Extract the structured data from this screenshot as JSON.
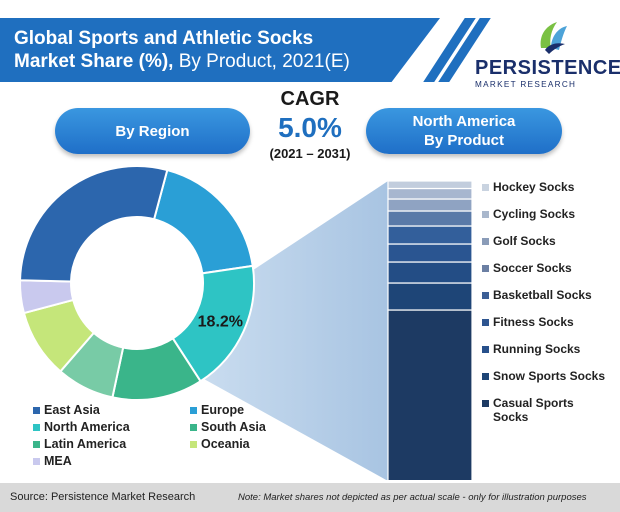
{
  "title": {
    "bold": "Global Sports and Athletic Socks",
    "bold2": "Market Share (%),",
    "regular": " By Product, 2021(E)"
  },
  "logo": {
    "name": "PERSISTENCE",
    "tagline": "MARKET RESEARCH",
    "icon": "persistence-leaf-logo"
  },
  "pill_left": "By Region",
  "pill_right_line1": "North America",
  "pill_right_line2": "By Product",
  "cagr": {
    "label": "CAGR",
    "value": "5.0%",
    "period": "(2021 – 2031)"
  },
  "chart_data": [
    {
      "type": "pie",
      "variant": "donut",
      "title": "By Region",
      "highlight_label": "18.2%",
      "slices": [
        {
          "name": "Europe",
          "value": 18.5,
          "color": "#2a9fd6"
        },
        {
          "name": "North America",
          "value": 18.2,
          "color": "#2ec4c4"
        },
        {
          "name": "South Asia",
          "value": 12.5,
          "color": "#3ab58a"
        },
        {
          "name": "Oceania",
          "value": 8.0,
          "color": "#78cba6"
        },
        {
          "name": "Latin America",
          "value": 9.5,
          "color": "#c5e67a"
        },
        {
          "name": "MEA",
          "value": 4.5,
          "color": "#c9c9ee"
        },
        {
          "name": "East Asia",
          "value": 28.8,
          "color": "#2c66ad"
        }
      ],
      "legend": [
        {
          "name": "East Asia",
          "color": "#2c66ad"
        },
        {
          "name": "Europe",
          "color": "#2a9fd6"
        },
        {
          "name": "North America",
          "color": "#2ec4c4"
        },
        {
          "name": "South Asia",
          "color": "#3ab58a"
        },
        {
          "name": "Latin America",
          "color": "#3ab58a"
        },
        {
          "name": "Oceania",
          "color": "#c5e67a"
        },
        {
          "name": "MEA",
          "color": "#c9c9ee"
        }
      ]
    },
    {
      "type": "bar",
      "variant": "stacked-100",
      "title": "North America By Product",
      "categories": [
        "North America"
      ],
      "series": [
        {
          "name": "Casual Sports Socks",
          "value": 57.0,
          "color": "#1d3a63"
        },
        {
          "name": "Snow Sports Socks",
          "value": 9.0,
          "color": "#1e4577"
        },
        {
          "name": "Running Socks",
          "value": 7.0,
          "color": "#234d85"
        },
        {
          "name": "Fitness Socks",
          "value": 6.0,
          "color": "#2a5591"
        },
        {
          "name": "Basketball Socks",
          "value": 6.0,
          "color": "#335f9b"
        },
        {
          "name": "Soccer Socks",
          "value": 5.0,
          "color": "#5a7aa8"
        },
        {
          "name": "Golf Socks",
          "value": 4.0,
          "color": "#8fa3c2"
        },
        {
          "name": "Cycling Socks",
          "value": 3.5,
          "color": "#a7b6cf"
        },
        {
          "name": "Hockey Socks",
          "value": 2.5,
          "color": "#c2cddd"
        }
      ],
      "legend_order": [
        "Hockey Socks",
        "Cycling Socks",
        "Golf Socks",
        "Soccer Socks",
        "Basketball Socks",
        "Fitness Socks",
        "Running Socks",
        "Snow Sports Socks",
        "Casual Sports Socks"
      ],
      "legend_colors": {
        "Hockey Socks": "#c9d3e0",
        "Cycling Socks": "#a9b7cc",
        "Golf Socks": "#8a9cb8",
        "Soccer Socks": "#6b7fa3",
        "Basketball Socks": "#3c5f96",
        "Fitness Socks": "#2e5590",
        "Running Socks": "#27508b",
        "Snow Sports Socks": "#1e4577",
        "Casual Sports Socks": "#1d3a63"
      }
    }
  ],
  "footer": {
    "source": "Source: Persistence Market Research",
    "note": "Note: Market shares not depicted as per actual scale - only for illustration purposes"
  }
}
